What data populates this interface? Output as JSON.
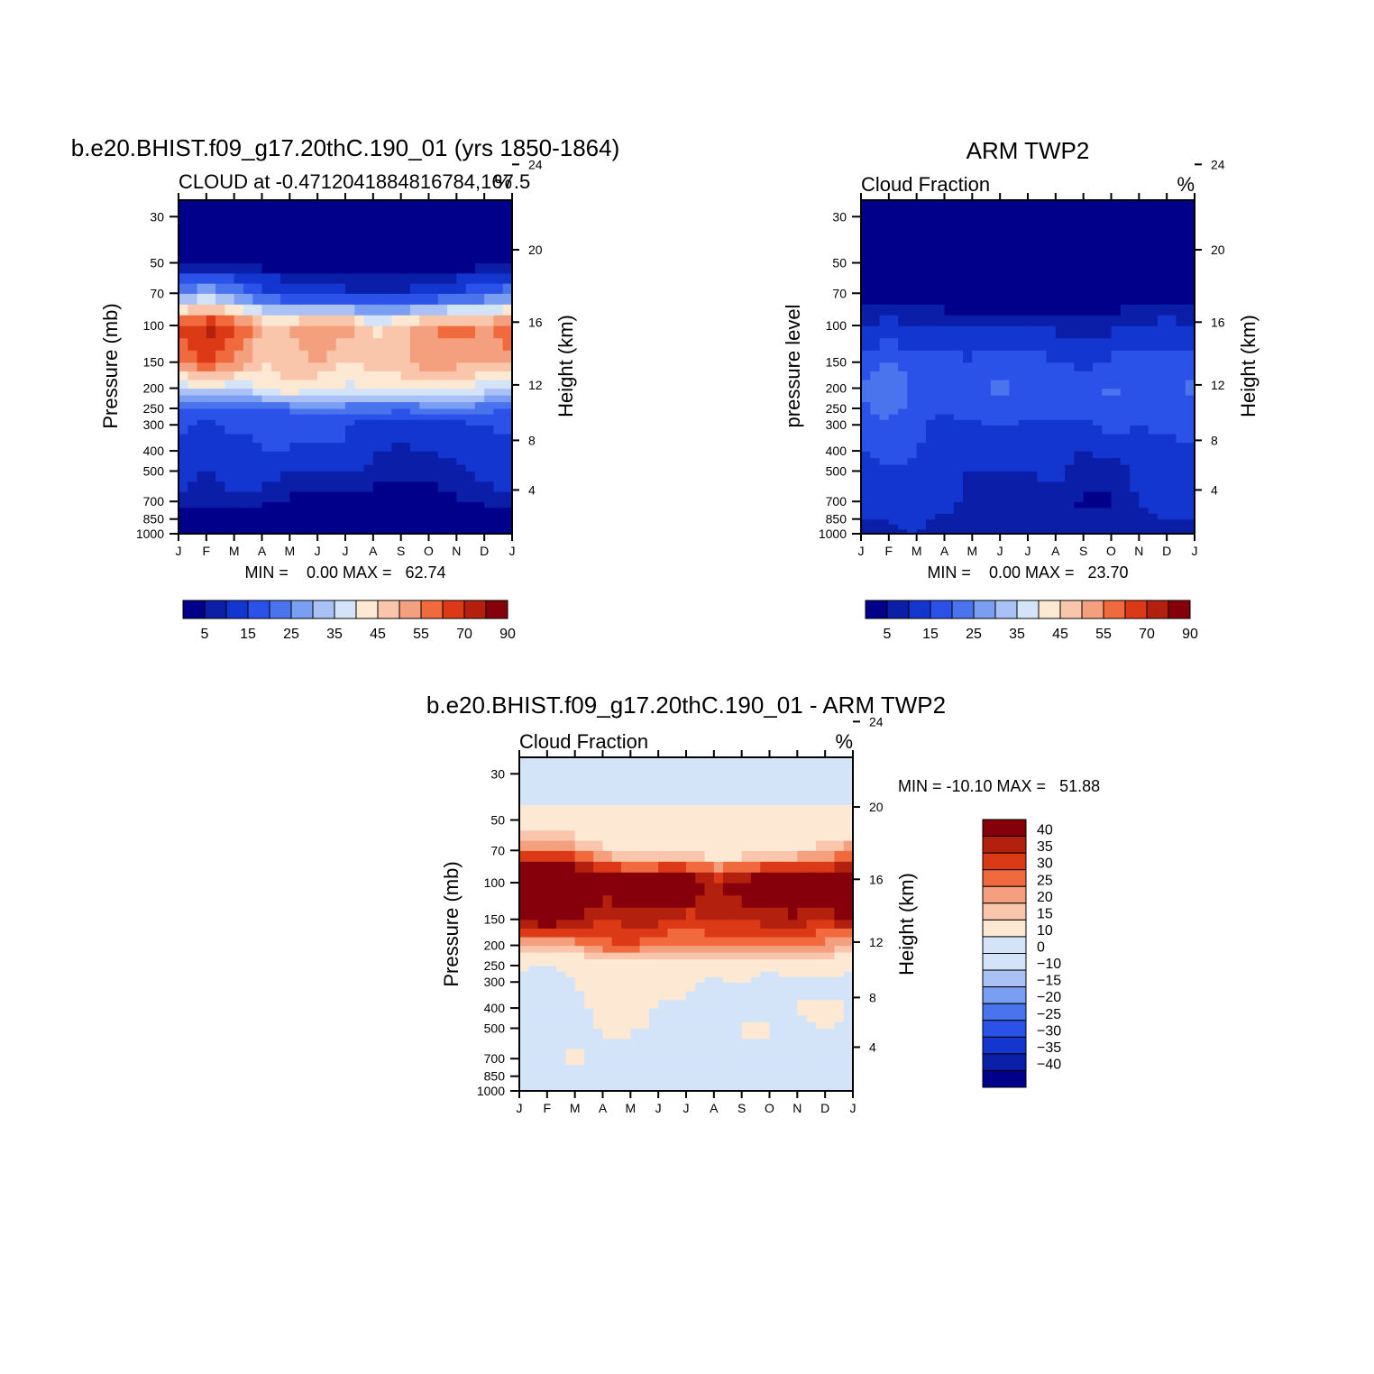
{
  "chart_data": [
    {
      "type": "contour",
      "id": "model",
      "title": "b.e20.BHIST.f09_g17.20thC.190_01 (yrs 1850-1864)",
      "subtitle_left": "CLOUD at -0.4712041884816784,167.5",
      "subtitle_right": "%",
      "ylabel": "Pressure (mb)",
      "ylabel_right": "Height (km)",
      "stats": "MIN =    0.00 MAX =   62.74",
      "x_ticks": [
        "J",
        "F",
        "M",
        "A",
        "M",
        "J",
        "J",
        "A",
        "S",
        "O",
        "N",
        "D",
        "J"
      ],
      "pressure_levels": [
        1000,
        850,
        700,
        500,
        400,
        300,
        250,
        200,
        150,
        100,
        70,
        50,
        30
      ],
      "height_ticks": [
        "24",
        "20",
        "16",
        "12",
        "8",
        "4"
      ],
      "ylim_mb": [
        1000,
        25
      ],
      "colorbar_labels": [
        "5",
        "15",
        "25",
        "35",
        "45",
        "55",
        "70",
        "90"
      ],
      "grid": [
        [
          0.4,
          0.5,
          0.4,
          0.3,
          0.2,
          0.1,
          0.1,
          0.1,
          0.1,
          0.2,
          0.3,
          0.5,
          0.4
        ],
        [
          0.6,
          0.6,
          0.6,
          0.5,
          0.4,
          0.2,
          0.1,
          0.1,
          0.1,
          0.2,
          0.5,
          0.6,
          0.6
        ],
        [
          4,
          3,
          4,
          3,
          2,
          1,
          2,
          1,
          1,
          1,
          2,
          3,
          4
        ],
        [
          7,
          5,
          7,
          7,
          5,
          5,
          5,
          4,
          3,
          3,
          4,
          6,
          7
        ],
        [
          9,
          5,
          7,
          10,
          10,
          9,
          10,
          5,
          4,
          5,
          6,
          9,
          9
        ],
        [
          11,
          9,
          11,
          11,
          10,
          11,
          10,
          7,
          8,
          8,
          8,
          10,
          11
        ],
        [
          13,
          12,
          14,
          15,
          16,
          18,
          17,
          17,
          16,
          17,
          18,
          17,
          13
        ],
        [
          30,
          34,
          30,
          35,
          40,
          35,
          34,
          35,
          35,
          37,
          37,
          32,
          30
        ],
        [
          48,
          55,
          50,
          40,
          43,
          46,
          38,
          42,
          44,
          48,
          47,
          44,
          48
        ],
        [
          55,
          62,
          57,
          45,
          45,
          48,
          50,
          38,
          43,
          50,
          52,
          50,
          55
        ],
        [
          20,
          25,
          20,
          12,
          8,
          7,
          6,
          5,
          5,
          7,
          10,
          14,
          20
        ],
        [
          0.5,
          0.6,
          0.5,
          0.3,
          0.2,
          0.1,
          0.1,
          0.1,
          0.1,
          0.2,
          0.3,
          0.4,
          0.5
        ],
        [
          0.2,
          0.2,
          0.2,
          0.1,
          0.1,
          0.1,
          0.1,
          0.1,
          0.1,
          0.1,
          0.1,
          0.2,
          0.2
        ]
      ]
    },
    {
      "type": "contour",
      "id": "obs",
      "title": "ARM TWP2",
      "subtitle_left": "Cloud Fraction",
      "subtitle_right": "%",
      "ylabel": "pressure level",
      "ylabel_right": "Height (km)",
      "stats": "MIN =    0.00 MAX =   23.70",
      "x_ticks": [
        "J",
        "F",
        "M",
        "A",
        "M",
        "J",
        "J",
        "A",
        "S",
        "O",
        "N",
        "D",
        "J"
      ],
      "pressure_levels": [
        1000,
        850,
        700,
        500,
        400,
        300,
        250,
        200,
        150,
        100,
        70,
        50,
        30
      ],
      "height_ticks": [
        "24",
        "20",
        "16",
        "12",
        "8",
        "4"
      ],
      "ylim_mb": [
        1000,
        25
      ],
      "colorbar_labels": [
        "5",
        "15",
        "25",
        "35",
        "45",
        "55",
        "70",
        "90"
      ],
      "grid": [
        [
          3,
          4,
          5,
          4,
          4,
          3,
          3,
          3,
          3,
          3,
          4,
          5,
          3
        ],
        [
          5,
          5,
          6,
          4,
          4,
          3,
          3,
          3,
          3,
          3,
          4,
          5,
          5
        ],
        [
          6,
          8,
          6,
          7,
          3,
          4,
          4,
          4,
          2,
          2,
          5,
          6,
          6
        ],
        [
          8,
          9,
          9,
          6,
          5,
          5,
          5,
          6,
          3,
          3,
          6,
          6,
          8
        ],
        [
          10,
          12,
          10,
          7,
          6,
          6,
          5,
          6,
          5,
          6,
          6,
          7,
          10
        ],
        [
          12,
          14,
          11,
          8,
          9,
          10,
          9,
          9,
          8,
          12,
          10,
          12,
          12
        ],
        [
          14,
          17,
          13,
          11,
          13,
          14,
          12,
          11,
          13,
          14,
          14,
          13,
          14
        ],
        [
          16,
          20,
          14,
          12,
          14,
          16,
          14,
          12,
          13,
          16,
          14,
          14,
          16
        ],
        [
          12,
          15,
          13,
          12,
          11,
          13,
          12,
          11,
          8,
          11,
          12,
          12,
          12
        ],
        [
          5,
          6,
          5,
          4,
          4,
          4,
          4,
          4,
          3,
          4,
          5,
          6,
          5
        ],
        [
          1,
          1,
          1,
          1,
          0.8,
          0.8,
          0.8,
          0.8,
          0.7,
          0.8,
          0.9,
          1,
          1
        ],
        [
          0.3,
          0.3,
          0.3,
          0.3,
          0.3,
          0.3,
          0.3,
          0.3,
          0.3,
          0.3,
          0.3,
          0.3,
          0.3
        ],
        [
          0.1,
          0.1,
          0.1,
          0.1,
          0.1,
          0.1,
          0.1,
          0.1,
          0.1,
          0.1,
          0.1,
          0.1,
          0.1
        ]
      ]
    },
    {
      "type": "contour",
      "id": "diff",
      "title": "b.e20.BHIST.f09_g17.20thC.190_01 - ARM TWP2",
      "subtitle_left": "Cloud Fraction",
      "subtitle_right": "%",
      "ylabel": "Pressure (mb)",
      "ylabel_right": "Height (km)",
      "stats": "MIN = -10.10 MAX =   51.88",
      "x_ticks": [
        "J",
        "F",
        "M",
        "A",
        "M",
        "J",
        "J",
        "A",
        "S",
        "O",
        "N",
        "D",
        "J"
      ],
      "pressure_levels": [
        1000,
        850,
        700,
        500,
        400,
        300,
        250,
        200,
        150,
        100,
        70,
        50,
        30
      ],
      "height_ticks": [
        "24",
        "20",
        "16",
        "12",
        "8",
        "4"
      ],
      "ylim_mb": [
        1000,
        25
      ],
      "colorbar_labels": [
        "40",
        "35",
        "30",
        "25",
        "20",
        "15",
        "10",
        "0",
        "-10",
        "-15",
        "-20",
        "-25",
        "-30",
        "-35",
        "-40"
      ],
      "grid": [
        [
          -3,
          -4,
          -5,
          -4,
          -4,
          -3,
          -3,
          -3,
          -3,
          -3,
          -4,
          -5,
          -3
        ],
        [
          -4,
          -4,
          -5,
          -3,
          -3,
          -2,
          -2,
          -2,
          -2,
          -2,
          -3,
          -4,
          -4
        ],
        [
          -2,
          -3,
          2,
          -4,
          -2,
          -3,
          -2,
          -3,
          -1,
          -1,
          -2,
          -3,
          -2
        ],
        [
          -1,
          0.5,
          -2,
          1,
          0.5,
          -1,
          -1,
          -2,
          0.5,
          0.5,
          -2,
          0.5,
          -1
        ],
        [
          -1,
          -4,
          -3,
          3,
          5,
          -1,
          -1,
          -1,
          -1,
          -1,
          0.5,
          2,
          -1
        ],
        [
          -1,
          -5,
          0.5,
          3,
          1,
          1,
          1,
          -2,
          0.5,
          -4,
          -2,
          -2,
          -1
        ],
        [
          0.5,
          0.5,
          1,
          4,
          3,
          4,
          5,
          6,
          3,
          3,
          4,
          4,
          0.5
        ],
        [
          14,
          14,
          16,
          23,
          26,
          19,
          20,
          23,
          22,
          21,
          23,
          18,
          14
        ],
        [
          36,
          40,
          37,
          28,
          32,
          33,
          26,
          30,
          31,
          32,
          33,
          30,
          36
        ],
        [
          50,
          56,
          52,
          41,
          41,
          44,
          46,
          34,
          40,
          46,
          47,
          44,
          50
        ],
        [
          19,
          24,
          19,
          11,
          7,
          6,
          5,
          4,
          4,
          6,
          9,
          13,
          19
        ],
        [
          0.5,
          0.5,
          0.5,
          0.5,
          0.5,
          0.5,
          0.5,
          0.5,
          0.5,
          0.5,
          0.5,
          0.5,
          0.5
        ],
        [
          -1,
          -1,
          -1,
          -1,
          -1,
          -1,
          -1,
          -1,
          -1,
          -1,
          -1,
          -1,
          -1
        ]
      ]
    }
  ],
  "colors": {
    "abs_palette": [
      "#00008b",
      "#0b1ea7",
      "#1436d0",
      "#2a52e8",
      "#4a73ee",
      "#7a9ef2",
      "#a9c1f5",
      "#d3e4f9",
      "#fde8d4",
      "#f9c6ab",
      "#f4a07f",
      "#f06a3d",
      "#dc3a16",
      "#b3200e",
      "#85000a"
    ],
    "diff_palette": [
      "#00008b",
      "#0b1ea7",
      "#1436d0",
      "#2a52e8",
      "#4a73ee",
      "#7a9ef2",
      "#a9c1f5",
      "#d3e4f9",
      "#fde8d4",
      "#f9c6ab",
      "#f4a07f",
      "#f06a3d",
      "#dc3a16",
      "#b3200e",
      "#85000a"
    ]
  }
}
